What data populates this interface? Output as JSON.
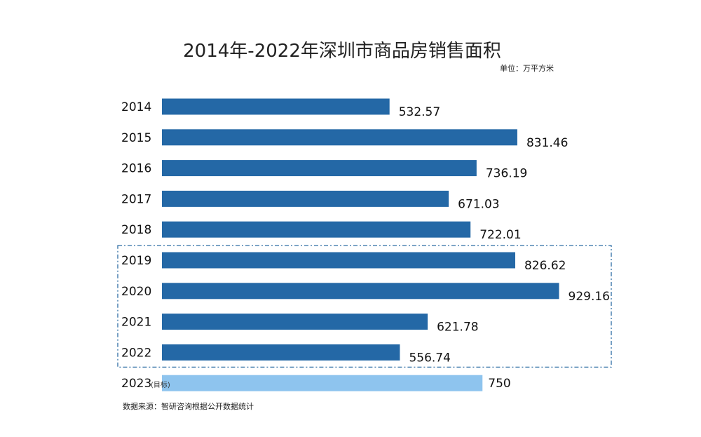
{
  "chart_data": {
    "type": "bar",
    "orientation": "horizontal",
    "title": "2014年-2022年深圳市商品房销售面积",
    "unit_label": "单位：万平方米",
    "categories": [
      "2014",
      "2015",
      "2016",
      "2017",
      "2018",
      "2019",
      "2020",
      "2021",
      "2022",
      "2023"
    ],
    "values": [
      532.57,
      831.46,
      736.19,
      671.03,
      722.01,
      826.62,
      929.16,
      621.78,
      556.74,
      750
    ],
    "value_labels": [
      "532.57",
      "831.46",
      "736.19",
      "671.03",
      "722.01",
      "826.62",
      "929.16",
      "621.78",
      "556.74",
      "750"
    ],
    "target_note": "(目标)",
    "source": "数据来源：智研咨询根据公开数据统计",
    "colors": {
      "bar": "#2468a6",
      "target_bar": "#8ec4ee",
      "target_label": "#e0342a",
      "highlight_box": "#2e6da4"
    },
    "xlim": [
      0,
      1000
    ],
    "highlight_range": [
      "2019",
      "2022"
    ],
    "grid": false,
    "legend": "none"
  }
}
